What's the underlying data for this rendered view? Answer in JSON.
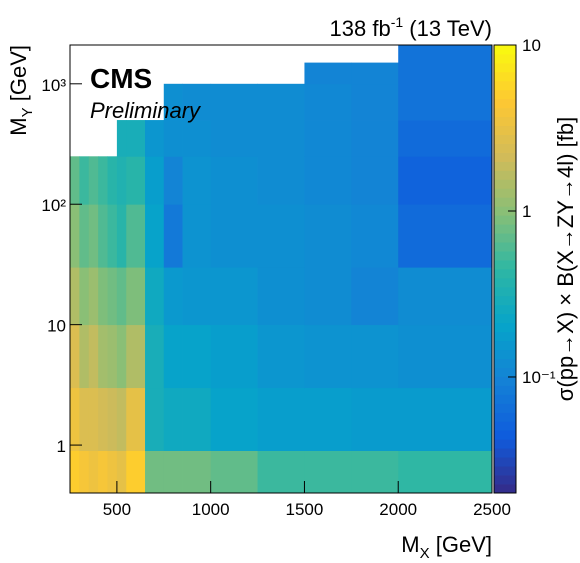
{
  "chart_data": {
    "type": "heatmap",
    "lumi": {
      "main": "138 fb",
      "sup": "-1",
      "rest": " (13 TeV)"
    },
    "experiment": "CMS",
    "status": "Preliminary",
    "x_label": {
      "main": "M",
      "sub": "X",
      "unit": " [GeV]"
    },
    "y_label": {
      "main": "M",
      "sub": "Y",
      "unit": " [GeV]"
    },
    "z_label": "σ(pp→X) × B(X→ZY→4l) [fb]",
    "x_edges": [
      250,
      300,
      350,
      400,
      450,
      500,
      550,
      650,
      750,
      850,
      1000,
      1250,
      1500,
      1750,
      2000,
      2500
    ],
    "y_edges": [
      0.4,
      0.9,
      3,
      10,
      30,
      100,
      250,
      500,
      1000,
      1500,
      2100
    ],
    "z": [
      [
        5,
        4,
        3.5,
        4,
        3.5,
        3,
        5,
        0.8,
        0.8,
        0.8,
        0.7,
        0.5,
        0.5,
        0.5,
        0.45
      ],
      [
        3.5,
        2.5,
        2.5,
        2.2,
        2,
        1.8,
        3,
        0.3,
        0.25,
        0.25,
        0.2,
        0.18,
        0.18,
        0.17,
        0.17
      ],
      [
        2.5,
        1.5,
        1.8,
        1.3,
        1.2,
        1,
        1.5,
        0.3,
        0.2,
        0.2,
        0.18,
        0.15,
        0.14,
        0.14,
        0.13
      ],
      [
        1.5,
        1,
        1.2,
        0.9,
        0.8,
        0.7,
        0.9,
        0.25,
        0.16,
        0.15,
        0.15,
        0.13,
        0.12,
        0.1,
        0.12
      ],
      [
        1,
        0.7,
        0.8,
        0.6,
        0.5,
        0.4,
        0.6,
        0.2,
        0.08,
        0.14,
        0.13,
        0.13,
        0.12,
        0.11,
        0.06
      ],
      [
        0.7,
        0.5,
        0.6,
        0.5,
        0.4,
        0.35,
        0.4,
        0.18,
        0.1,
        0.14,
        0.13,
        0.12,
        0.11,
        0.1,
        0.05
      ],
      [
        null,
        null,
        null,
        null,
        null,
        0.3,
        0.3,
        0.15,
        0.13,
        0.13,
        0.12,
        0.12,
        0.11,
        0.1,
        0.06
      ],
      [
        null,
        null,
        null,
        null,
        null,
        null,
        null,
        null,
        0.13,
        0.12,
        0.12,
        0.12,
        0.11,
        0.1,
        0.07
      ],
      [
        null,
        null,
        null,
        null,
        null,
        null,
        null,
        null,
        null,
        null,
        null,
        null,
        0.1,
        0.1,
        0.07
      ],
      [
        null,
        null,
        null,
        null,
        null,
        null,
        null,
        null,
        null,
        null,
        null,
        null,
        null,
        null,
        0.07
      ]
    ],
    "xlim": [
      250,
      2500
    ],
    "xticks": [
      500,
      1000,
      1500,
      2000,
      2500
    ],
    "ylim": [
      0.4,
      2100
    ],
    "yticks": [
      1,
      10,
      {
        "value": 100,
        "label": "10²"
      },
      {
        "value": 1000,
        "label": "10³"
      }
    ],
    "ylog": true,
    "zlim": [
      0.02,
      10
    ],
    "zticks": [
      {
        "value": 0.1,
        "label": "10⁻¹"
      },
      1,
      10
    ],
    "zlog": true,
    "colorscale": [
      "#352a87",
      "#0f5cdd",
      "#1481d6",
      "#06a4ca",
      "#2eb7a4",
      "#87bf77",
      "#d1bb59",
      "#fec832",
      "#f9fb0e"
    ]
  }
}
